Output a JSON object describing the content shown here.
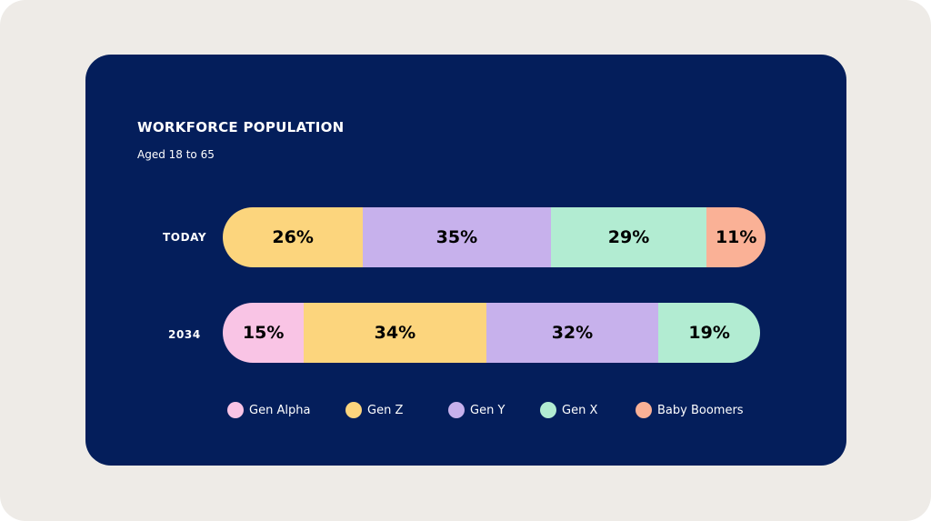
{
  "chart_data": {
    "type": "bar",
    "orientation": "horizontal",
    "stacked": true,
    "title": "WORKFORCE POPULATION",
    "subtitle": "Aged 18 to 65",
    "categories": [
      "TODAY",
      "2034"
    ],
    "series": [
      {
        "name": "Gen Alpha",
        "color": "#f9c4e5",
        "values": [
          null,
          15
        ],
        "labels": [
          "",
          "15%"
        ]
      },
      {
        "name": "Gen Z",
        "color": "#fcd57d",
        "values": [
          26,
          34
        ],
        "labels": [
          "26%",
          "34%"
        ]
      },
      {
        "name": "Gen Y",
        "color": "#c7b1ec",
        "values": [
          35,
          32
        ],
        "labels": [
          "35%",
          "32%"
        ]
      },
      {
        "name": "Gen X",
        "color": "#b2ecd2",
        "values": [
          29,
          19
        ],
        "labels": [
          "29%",
          "19%"
        ]
      },
      {
        "name": "Baby Boomers",
        "color": "#fab196",
        "values": [
          11,
          null
        ],
        "labels": [
          "11%",
          ""
        ]
      }
    ],
    "legend_position": "bottom",
    "unit": "%"
  }
}
